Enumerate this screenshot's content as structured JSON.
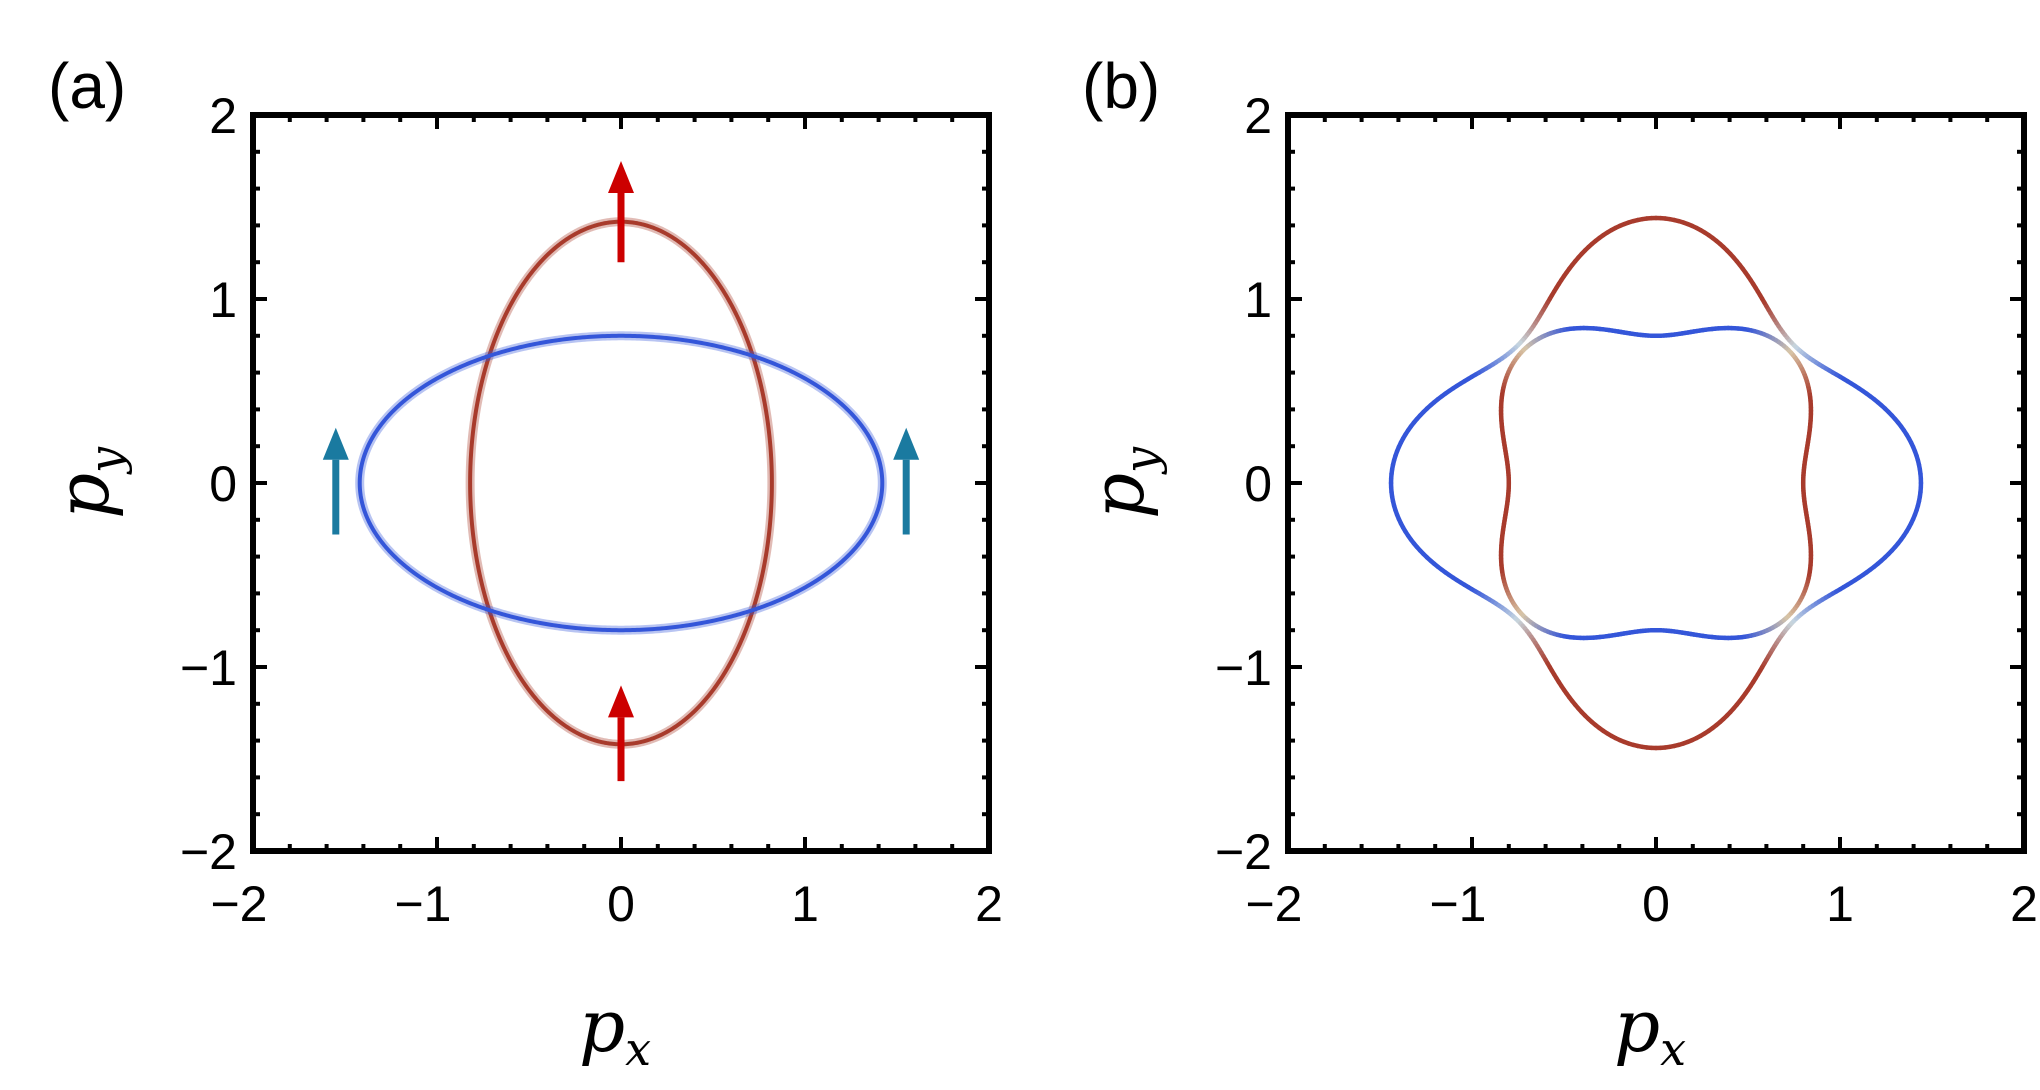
{
  "chart_data": [
    {
      "panel_label": "(a)",
      "type": "line",
      "xlabel": "p",
      "xlabel_sub": "x",
      "ylabel": "p",
      "ylabel_sub": "y",
      "xlim": [
        -2,
        2
      ],
      "ylim": [
        -2,
        2
      ],
      "xticks": [
        -2,
        -1,
        0,
        1,
        2
      ],
      "yticks": [
        -2,
        -1,
        0,
        1,
        2
      ],
      "xtick_labels": [
        "−2",
        "−1",
        "0",
        "1",
        "2"
      ],
      "ytick_labels": [
        "−2",
        "−1",
        "0",
        "1",
        "2"
      ],
      "grid": false,
      "series": [
        {
          "kind": "ellipse",
          "semi_x": 0.82,
          "semi_y": 1.42,
          "color": "#a83b2c"
        },
        {
          "kind": "ellipse",
          "semi_x": 1.42,
          "semi_y": 0.8,
          "color": "#3456d9"
        }
      ],
      "arrows": [
        {
          "x": 0,
          "y_from": 1.2,
          "y_to": 1.75,
          "color": "#cc0000"
        },
        {
          "x": 0,
          "y_from": -1.62,
          "y_to": -1.1,
          "color": "#cc0000"
        },
        {
          "x": -1.55,
          "y_from": -0.28,
          "y_to": 0.3,
          "color": "#1a7aa0"
        },
        {
          "x": 1.55,
          "y_from": -0.28,
          "y_to": 0.3,
          "color": "#1a7aa0"
        }
      ]
    },
    {
      "panel_label": "(b)",
      "type": "line",
      "xlabel": "p",
      "xlabel_sub": "x",
      "ylabel": "p",
      "ylabel_sub": "y",
      "xlim": [
        -2,
        2
      ],
      "ylim": [
        -2,
        2
      ],
      "xticks": [
        -2,
        -1,
        0,
        1,
        2
      ],
      "yticks": [
        -2,
        -1,
        0,
        1,
        2
      ],
      "xtick_labels": [
        "−2",
        "−1",
        "0",
        "1",
        "2"
      ],
      "ytick_labels": [
        "−2",
        "−1",
        "0",
        "1",
        "2"
      ],
      "grid": false,
      "series": [
        {
          "kind": "outer-contour",
          "r_axis": 1.44,
          "r_diag": 1.06,
          "color_axis_x": "#3456d9",
          "color_axis_y": "#a83b2c",
          "color_diag": "#c8d8e0"
        },
        {
          "kind": "inner-contour",
          "r_axis": 0.8,
          "r_diag": 1.02,
          "color_axis_x": "#a83b2c",
          "color_axis_y": "#3456d9",
          "color_diag": "#d9c7a8"
        }
      ]
    }
  ],
  "colors": {
    "red_band": "#a83b2c",
    "blue_band": "#3456d9",
    "red_arrow": "#cc0000",
    "teal_arrow": "#1a7aa0"
  }
}
